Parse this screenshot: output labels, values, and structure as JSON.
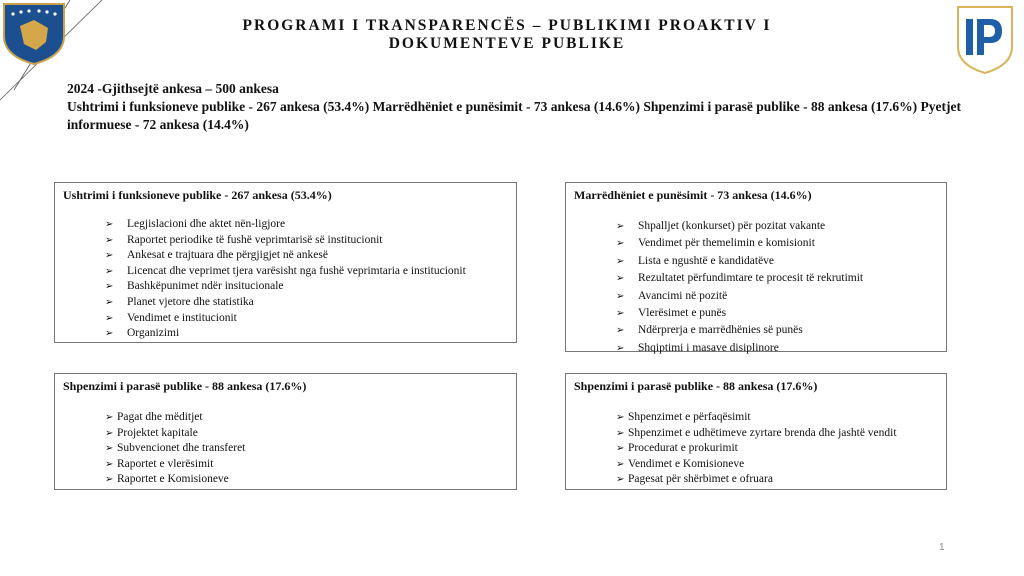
{
  "header": {
    "title_line1": "PROGRAMI I TRANSPARENCËS – PUBLIKIMI PROAKTIV I",
    "title_line2": "DOKUMENTEVE PUBLIKE",
    "left_logo": "kosovo-coat-of-arms",
    "right_logo": "IP",
    "colors": {
      "brand_blue": "#1f5fa8",
      "gold": "#d9b45a"
    }
  },
  "summary": {
    "line1": "2024 -Gjithsejtë ankesa – 500 ankesa",
    "line2": "Ushtrimi i funksioneve publike - 267 ankesa (53.4%) Marrëdhëniet e punësimit - 73 ankesa (14.6%) Shpenzimi i parasë publike - 88 ankesa (17.6%) Pyetjet informuese - 72 ankesa (14.4%)"
  },
  "boxes": [
    {
      "title": "Ushtrimi i funksioneve publike - 267 ankesa (53.4%)",
      "items": [
        "Legjislacioni dhe aktet nën-ligjore",
        "Raportet periodike të fushë veprimtarisë së institucionit",
        "Ankesat e trajtuara dhe përgjigjet në ankesë",
        "Licencat dhe veprimet tjera varësisht nga fushë veprimtaria e institucionit",
        "Bashkëpunimet ndër insitucionale",
        "Planet vjetore dhe statistika",
        "Vendimet e institucionit",
        "Organizimi"
      ]
    },
    {
      "title": "Marrëdhëniet e punësimit - 73 ankesa (14.6%)",
      "items": [
        "Shpalljet (konkurset) për pozitat vakante",
        "Vendimet për themelimin e komisionit",
        "Lista e ngushtë e kandidatëve",
        "Rezultatet përfundimtare te procesit të rekrutimit",
        "Avancimi në pozitë",
        "Vlerësimet e punës",
        "Ndërprerja e marrëdhënies së punës",
        "Shqiptimi i masave disiplinore"
      ]
    },
    {
      "title": "Shpenzimi i parasë publike - 88 ankesa (17.6%)",
      "items": [
        "Pagat dhe mëditjet",
        "Projektet kapitale",
        "Subvencionet dhe transferet",
        "Raportet e vlerësimit",
        "Raportet e Komisioneve"
      ]
    },
    {
      "title": "Shpenzimi i parasë publike - 88 ankesa (17.6%)",
      "items": [
        "Shpenzimet e përfaqësimit",
        "Shpenzimet e udhëtimeve zyrtare brenda dhe jashtë vendit",
        "Procedurat e prokurimit",
        "Vendimet e Komisioneve",
        "Pagesat për shërbimet e ofruara"
      ]
    }
  ],
  "bullet_icon": "arrowhead-bullet",
  "page_number": "1"
}
